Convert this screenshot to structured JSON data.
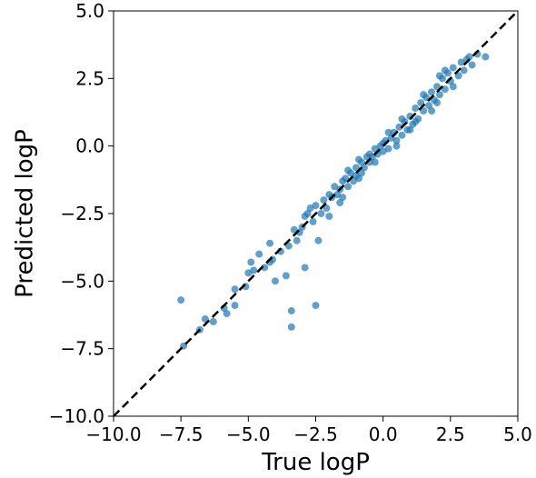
{
  "chart_data": {
    "type": "scatter",
    "title": "",
    "xlabel": "True logP",
    "ylabel": "Predicted logP",
    "xlim": [
      -10.0,
      5.0
    ],
    "ylim": [
      -10.0,
      5.0
    ],
    "xticks": [
      "−10.0",
      "−7.5",
      "−5.0",
      "−2.5",
      "0.0",
      "2.5",
      "5.0"
    ],
    "yticks": [
      "−10.0",
      "−7.5",
      "−5.0",
      "−2.5",
      "0.0",
      "2.5",
      "5.0"
    ],
    "grid": false,
    "legend": "none",
    "reference_line": {
      "style": "dashed",
      "color": "#000000",
      "from": [
        -10,
        -10
      ],
      "to": [
        5,
        5
      ]
    },
    "series": [
      {
        "color": "#1f77b4",
        "points": [
          [
            -7.5,
            -5.7
          ],
          [
            -7.4,
            -7.4
          ],
          [
            -6.8,
            -6.8
          ],
          [
            -6.6,
            -6.4
          ],
          [
            -6.3,
            -6.5
          ],
          [
            -5.9,
            -6.0
          ],
          [
            -5.8,
            -6.2
          ],
          [
            -5.5,
            -5.9
          ],
          [
            -5.5,
            -5.3
          ],
          [
            -5.1,
            -5.2
          ],
          [
            -5.0,
            -4.7
          ],
          [
            -4.9,
            -4.3
          ],
          [
            -4.8,
            -4.6
          ],
          [
            -4.6,
            -4.0
          ],
          [
            -4.4,
            -4.5
          ],
          [
            -4.2,
            -4.3
          ],
          [
            -4.1,
            -4.2
          ],
          [
            -4.2,
            -3.6
          ],
          [
            -4.0,
            -5.0
          ],
          [
            -3.8,
            -3.9
          ],
          [
            -3.6,
            -4.8
          ],
          [
            -3.5,
            -3.7
          ],
          [
            -3.4,
            -6.7
          ],
          [
            -3.4,
            -6.1
          ],
          [
            -3.3,
            -3.1
          ],
          [
            -3.1,
            -3.2
          ],
          [
            -3.0,
            -3.0
          ],
          [
            -2.9,
            -2.6
          ],
          [
            -2.9,
            -4.5
          ],
          [
            -2.8,
            -2.5
          ],
          [
            -2.6,
            -2.8
          ],
          [
            -2.5,
            -5.9
          ],
          [
            -2.5,
            -2.2
          ],
          [
            -2.4,
            -3.5
          ],
          [
            -2.3,
            -2.5
          ],
          [
            -2.2,
            -2.0
          ],
          [
            -2.1,
            -2.3
          ],
          [
            -2.0,
            -1.8
          ],
          [
            -2.0,
            -2.6
          ],
          [
            -1.9,
            -1.9
          ],
          [
            -1.8,
            -1.5
          ],
          [
            -1.7,
            -1.8
          ],
          [
            -1.6,
            -1.6
          ],
          [
            -1.5,
            -1.3
          ],
          [
            -1.5,
            -1.9
          ],
          [
            -1.4,
            -1.2
          ],
          [
            -1.3,
            -1.5
          ],
          [
            -1.2,
            -1.0
          ],
          [
            -1.1,
            -1.3
          ],
          [
            -1.0,
            -0.8
          ],
          [
            -1.0,
            -1.1
          ],
          [
            -0.9,
            -1.2
          ],
          [
            -0.8,
            -0.6
          ],
          [
            -0.7,
            -0.8
          ],
          [
            -0.6,
            -0.4
          ],
          [
            -0.5,
            -0.6
          ],
          [
            -0.5,
            -0.3
          ],
          [
            -0.4,
            -0.4
          ],
          [
            -0.3,
            -0.1
          ],
          [
            -0.2,
            -0.3
          ],
          [
            -0.1,
            0.0
          ],
          [
            0.0,
            -0.2
          ],
          [
            0.0,
            0.1
          ],
          [
            0.1,
            0.2
          ],
          [
            0.2,
            -0.1
          ],
          [
            0.3,
            0.3
          ],
          [
            0.4,
            0.5
          ],
          [
            0.5,
            0.2
          ],
          [
            0.6,
            0.7
          ],
          [
            0.7,
            0.4
          ],
          [
            0.8,
            0.9
          ],
          [
            0.9,
            0.6
          ],
          [
            1.0,
            1.1
          ],
          [
            1.1,
            0.8
          ],
          [
            1.2,
            1.4
          ],
          [
            1.3,
            1.0
          ],
          [
            1.4,
            1.6
          ],
          [
            1.5,
            1.3
          ],
          [
            1.6,
            1.8
          ],
          [
            1.7,
            1.5
          ],
          [
            1.8,
            2.0
          ],
          [
            1.9,
            1.7
          ],
          [
            2.0,
            2.2
          ],
          [
            2.1,
            1.9
          ],
          [
            2.2,
            2.5
          ],
          [
            2.3,
            2.1
          ],
          [
            2.4,
            2.7
          ],
          [
            2.5,
            2.4
          ],
          [
            2.6,
            2.9
          ],
          [
            2.8,
            2.6
          ],
          [
            2.9,
            3.1
          ],
          [
            3.1,
            3.2
          ],
          [
            3.2,
            3.3
          ],
          [
            3.3,
            3.0
          ],
          [
            3.5,
            3.4
          ],
          [
            3.8,
            3.3
          ],
          [
            -1.6,
            -2.1
          ],
          [
            -0.8,
            -1.0
          ],
          [
            0.2,
            0.5
          ],
          [
            1.0,
            0.6
          ],
          [
            1.5,
            1.9
          ],
          [
            2.0,
            1.6
          ],
          [
            2.3,
            2.8
          ],
          [
            1.8,
            1.3
          ],
          [
            0.7,
            1.0
          ],
          [
            -0.3,
            -0.6
          ],
          [
            -2.7,
            -2.3
          ],
          [
            -3.2,
            -3.5
          ],
          [
            -1.3,
            -0.9
          ],
          [
            0.5,
            0.0
          ],
          [
            1.2,
            0.9
          ],
          [
            2.6,
            2.2
          ],
          [
            2.1,
            2.6
          ],
          [
            3.0,
            2.8
          ],
          [
            -0.9,
            -0.5
          ]
        ]
      }
    ]
  }
}
